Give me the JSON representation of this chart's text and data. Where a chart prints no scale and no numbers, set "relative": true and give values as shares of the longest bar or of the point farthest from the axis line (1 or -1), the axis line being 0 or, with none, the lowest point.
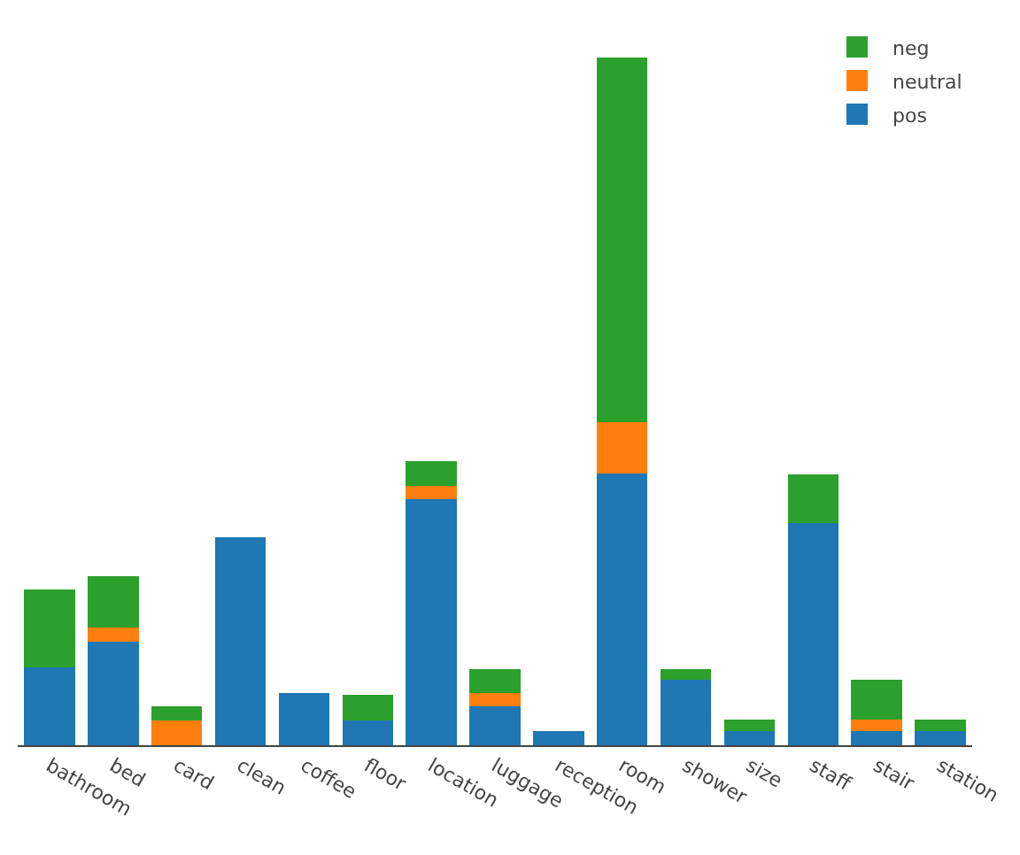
{
  "chart_data": {
    "type": "bar",
    "stacked": true,
    "relative": true,
    "legend": "top right",
    "categories": [
      "bathroom",
      "bed",
      "card",
      "clean",
      "coffee",
      "floor",
      "location",
      "luggage",
      "reception",
      "room",
      "shower",
      "size",
      "staff",
      "stair",
      "station"
    ],
    "series": [
      {
        "name": "pos",
        "color": "#1f77b4",
        "values": [
          0.113,
          0.15,
          0,
          0.303,
          0.076,
          0.036,
          0.358,
          0.056,
          0.021,
          0.395,
          0.095,
          0.021,
          0.323,
          0.021,
          0.021
        ]
      },
      {
        "name": "neutral",
        "color": "#ff7f0e",
        "values": [
          0,
          0.021,
          0.036,
          0,
          0,
          0,
          0.019,
          0.02,
          0,
          0.075,
          0,
          0,
          0,
          0.016,
          0
        ]
      },
      {
        "name": "neg",
        "color": "#2ca02c",
        "values": [
          0.113,
          0.075,
          0.02,
          0,
          0,
          0.037,
          0.036,
          0.035,
          0,
          0.53,
          0.016,
          0.016,
          0.071,
          0.058,
          0.016
        ]
      }
    ]
  }
}
